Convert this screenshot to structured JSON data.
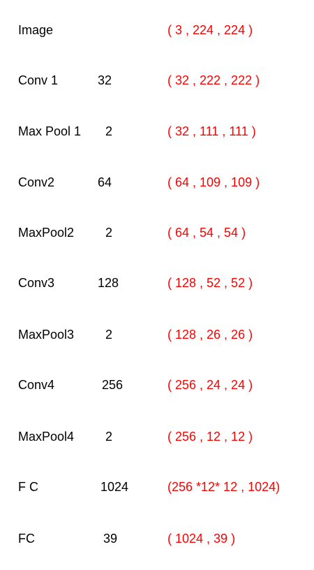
{
  "layers": [
    {
      "name": "Image",
      "param": "",
      "shape": "( 3 ,  224 , 224  )"
    },
    {
      "name": "Conv 1",
      "param": "32",
      "shape": "( 32 ,  222 , 222 )"
    },
    {
      "name": "Max Pool 1",
      "param": "2",
      "shape": "( 32 , 111 , 111 )"
    },
    {
      "name": "Conv2",
      "param": "64",
      "shape": "( 64 , 109 , 109 )"
    },
    {
      "name": "MaxPool2",
      "param": "2",
      "shape": "( 64 , 54 , 54 )"
    },
    {
      "name": "Conv3",
      "param": "128",
      "shape": "( 128 , 52 , 52 )"
    },
    {
      "name": "MaxPool3",
      "param": "2",
      "shape": "( 128 , 26 , 26  )"
    },
    {
      "name": "Conv4",
      "param": "256",
      "shape": "( 256 , 24 , 24 )"
    },
    {
      "name": "MaxPool4",
      "param": "2",
      "shape": "( 256 , 12 , 12 )"
    },
    {
      "name": "F C",
      "param": "1024",
      "shape": "(256 *12* 12 , 1024)"
    },
    {
      "name": "FC",
      "param": "39",
      "shape": "( 1024 , 39 )"
    }
  ],
  "colors": {
    "shape_text": "#ff0000",
    "layer_text": "#000000"
  }
}
